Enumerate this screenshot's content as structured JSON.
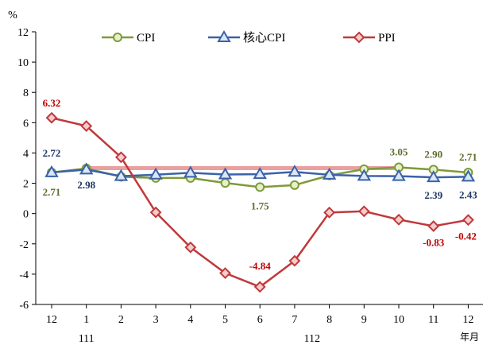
{
  "chart_data": {
    "type": "line",
    "y_unit": "%",
    "x_unit": "年月",
    "ylim": [
      -6,
      12
    ],
    "yticks": [
      -6,
      -4,
      -2,
      0,
      2,
      4,
      6,
      8,
      10,
      12
    ],
    "grid": false,
    "legend_position": "top",
    "categories": [
      "12",
      "1",
      "2",
      "3",
      "4",
      "5",
      "6",
      "7",
      "8",
      "9",
      "10",
      "11",
      "12"
    ],
    "year_labels": [
      {
        "label": "111",
        "at_index": 1
      },
      {
        "label": "112",
        "at_index": 7.5
      }
    ],
    "reference_line": {
      "value": 3,
      "from_index": 1,
      "to_index": 10,
      "color": "#e8a0a0"
    },
    "series": [
      {
        "name": "CPI",
        "color": "#7f9a3a",
        "marker": "circle",
        "values": [
          2.71,
          2.98,
          2.43,
          2.35,
          2.35,
          2.02,
          1.75,
          1.88,
          2.52,
          2.93,
          3.05,
          2.9,
          2.71
        ]
      },
      {
        "name": "核心CPI",
        "color": "#3a62a8",
        "marker": "triangle",
        "values": [
          2.72,
          2.9,
          2.47,
          2.57,
          2.69,
          2.58,
          2.6,
          2.75,
          2.56,
          2.48,
          2.47,
          2.39,
          2.43
        ]
      },
      {
        "name": "PPI",
        "color": "#c0393b",
        "marker": "diamond",
        "values": [
          6.32,
          5.78,
          3.72,
          0.08,
          -2.23,
          -3.93,
          -4.84,
          -3.12,
          0.07,
          0.15,
          -0.4,
          -0.83,
          -0.42
        ]
      }
    ],
    "data_labels": [
      {
        "text": "6.32",
        "series": "PPI",
        "index": 0,
        "color": "#c00000"
      },
      {
        "text": "2.72",
        "series": "核心CPI",
        "index": 0,
        "color": "#1f3864"
      },
      {
        "text": "2.71",
        "series": "CPI",
        "index": 0,
        "color": "#5c6e2a"
      },
      {
        "text": "2.98",
        "series": "CPI",
        "index": 1,
        "color": "#1f3864"
      },
      {
        "text": "1.75",
        "series": "CPI",
        "index": 6,
        "color": "#5c6e2a"
      },
      {
        "text": "-4.84",
        "series": "PPI",
        "index": 6,
        "color": "#c00000"
      },
      {
        "text": "3.05",
        "series": "CPI",
        "index": 10,
        "color": "#5c6e2a"
      },
      {
        "text": "2.90",
        "series": "CPI",
        "index": 11,
        "color": "#5c6e2a"
      },
      {
        "text": "2.71",
        "series": "CPI",
        "index": 12,
        "color": "#5c6e2a"
      },
      {
        "text": "2.39",
        "series": "核心CPI",
        "index": 11,
        "color": "#1f3864"
      },
      {
        "text": "2.43",
        "series": "核心CPI",
        "index": 12,
        "color": "#1f3864"
      },
      {
        "text": "-0.83",
        "series": "PPI",
        "index": 11,
        "color": "#c00000"
      },
      {
        "text": "-0.42",
        "series": "PPI",
        "index": 12,
        "color": "#c00000"
      }
    ]
  }
}
